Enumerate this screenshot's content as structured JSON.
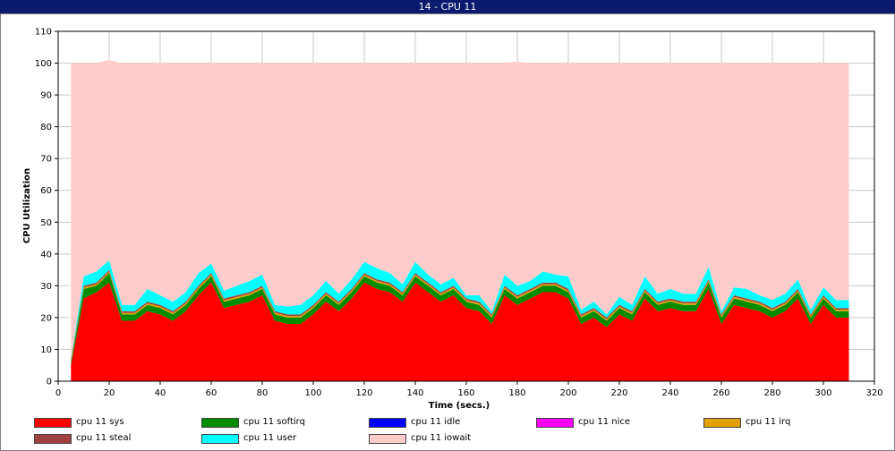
{
  "window": {
    "title": "14 - CPU 11"
  },
  "chart_data": {
    "type": "area",
    "stacked": true,
    "xlabel": "Time (secs.)",
    "ylabel": "CPU Utilization",
    "xlim": [
      0,
      320
    ],
    "ylim": [
      0,
      110
    ],
    "xticks": [
      0,
      20,
      40,
      60,
      80,
      100,
      120,
      140,
      160,
      180,
      200,
      220,
      240,
      260,
      280,
      300,
      320
    ],
    "yticks": [
      0,
      10,
      20,
      30,
      40,
      50,
      60,
      70,
      80,
      90,
      100,
      110
    ],
    "grid": true,
    "legend_position": "bottom",
    "x": [
      5,
      10,
      15,
      20,
      25,
      30,
      35,
      40,
      45,
      50,
      55,
      60,
      65,
      70,
      75,
      80,
      85,
      90,
      95,
      100,
      105,
      110,
      115,
      120,
      125,
      130,
      135,
      140,
      145,
      150,
      155,
      160,
      165,
      170,
      175,
      180,
      185,
      190,
      195,
      200,
      205,
      210,
      215,
      220,
      225,
      230,
      235,
      240,
      245,
      250,
      255,
      260,
      265,
      270,
      275,
      280,
      285,
      290,
      295,
      300,
      305,
      310
    ],
    "series": [
      {
        "name": "cpu 11 sys",
        "color": "#ff0000",
        "values": [
          5,
          26,
          28,
          31,
          19,
          19,
          22,
          21,
          19,
          22,
          27,
          31,
          23,
          24,
          25,
          27,
          19,
          18,
          18,
          21,
          25,
          22,
          26,
          31,
          29,
          28,
          25,
          31,
          28,
          25,
          27,
          23,
          22,
          18,
          27,
          24,
          26,
          28,
          28,
          26,
          18,
          20,
          17,
          21,
          19,
          26,
          22,
          23,
          22,
          22,
          29,
          18,
          24,
          23,
          22,
          20,
          22,
          26,
          18,
          24,
          20,
          20
        ]
      },
      {
        "name": "cpu 11 softirq",
        "color": "#008c00",
        "values": [
          1,
          3,
          2,
          3,
          2,
          2,
          2,
          2,
          2,
          2,
          2,
          2,
          2,
          2,
          2,
          2,
          2,
          2,
          2,
          2,
          2,
          2,
          2,
          2,
          2,
          2,
          2,
          2,
          2,
          2,
          2,
          2,
          2,
          2,
          2,
          2,
          2,
          2,
          2,
          2,
          2,
          2,
          2,
          2,
          2,
          2,
          2,
          2,
          2,
          2,
          2,
          2,
          2,
          2,
          2,
          2,
          2,
          2,
          2,
          2,
          2,
          2
        ]
      },
      {
        "name": "cpu 11 idle",
        "color": "#0000ff",
        "values": [
          0,
          0,
          0,
          0,
          0,
          0,
          0,
          0,
          0,
          0,
          0,
          0,
          0,
          0,
          0,
          0,
          0,
          0,
          0,
          0,
          0,
          0,
          0,
          0,
          0,
          0,
          0,
          0,
          0,
          0,
          0,
          0,
          0,
          0,
          0,
          0,
          0,
          0,
          0,
          0,
          0,
          0,
          0,
          0,
          0,
          0,
          0,
          0,
          0,
          0,
          0,
          0,
          0,
          0,
          0,
          0,
          0,
          0,
          0,
          0,
          0,
          0
        ]
      },
      {
        "name": "cpu 11 nice",
        "color": "#ff00ff",
        "values": [
          0,
          0,
          0,
          0,
          0,
          0,
          0,
          0,
          0,
          0,
          0,
          0,
          0,
          0,
          0,
          0,
          0,
          0,
          0,
          0,
          0,
          0,
          0,
          0,
          0,
          0,
          0,
          0,
          0,
          0,
          0,
          0,
          0,
          0,
          0,
          0,
          0,
          0,
          0,
          0,
          0,
          0,
          0,
          0,
          0,
          0,
          0,
          0,
          0,
          0,
          0,
          0,
          0,
          0,
          0,
          0,
          0,
          0,
          0,
          0,
          0,
          0
        ]
      },
      {
        "name": "cpu 11 irq",
        "color": "#e0a000",
        "values": [
          0.4,
          0.5,
          0.5,
          0.5,
          0.5,
          0.5,
          0.5,
          0.5,
          0.5,
          0.5,
          0.5,
          0.5,
          0.5,
          0.5,
          0.5,
          0.5,
          0.5,
          0.5,
          0.5,
          0.5,
          0.5,
          0.5,
          0.5,
          0.5,
          0.5,
          0.5,
          0.5,
          0.5,
          0.5,
          0.5,
          0.5,
          0.5,
          0.5,
          0.5,
          0.5,
          0.5,
          0.5,
          0.5,
          0.5,
          0.5,
          0.5,
          0.5,
          0.5,
          0.5,
          0.5,
          0.5,
          0.5,
          0.5,
          0.5,
          0.5,
          0.5,
          0.5,
          0.5,
          0.5,
          0.5,
          0.5,
          0.5,
          0.5,
          0.5,
          0.5,
          0.5,
          0.5
        ]
      },
      {
        "name": "cpu 11 steal",
        "color": "#a04040",
        "values": [
          0.4,
          0.5,
          0.5,
          0.5,
          0.5,
          0.5,
          0.5,
          0.5,
          0.5,
          0.5,
          0.5,
          0.5,
          0.5,
          0.5,
          0.5,
          0.5,
          0.5,
          0.5,
          0.5,
          0.5,
          0.5,
          0.5,
          0.5,
          0.5,
          0.5,
          0.5,
          0.5,
          0.5,
          0.5,
          0.5,
          0.5,
          0.5,
          0.5,
          0.5,
          0.5,
          0.5,
          0.5,
          0.5,
          0.5,
          0.5,
          0.5,
          0.5,
          0.5,
          0.5,
          0.5,
          0.5,
          0.5,
          0.5,
          0.5,
          0.5,
          0.5,
          0.5,
          0.5,
          0.5,
          0.5,
          0.5,
          0.5,
          0.5,
          0.5,
          0.5,
          0.5,
          0.5
        ]
      },
      {
        "name": "cpu 11 user",
        "color": "#00ffff",
        "values": [
          0.2,
          3,
          3.5,
          3,
          2,
          2,
          4,
          3,
          3,
          3,
          4,
          3,
          2.5,
          3,
          3.5,
          3.5,
          2,
          2.5,
          3,
          3,
          3.5,
          2.5,
          3,
          3.5,
          3.5,
          3,
          2.5,
          3.5,
          2.5,
          2.5,
          2.5,
          1,
          2,
          1,
          3.5,
          3,
          2.5,
          3.5,
          2.5,
          4,
          1.5,
          2,
          1,
          2.5,
          2,
          4,
          2.5,
          3,
          2.5,
          2.5,
          4,
          1,
          2.5,
          3,
          2,
          2.5,
          2.5,
          3,
          1.5,
          2.5,
          2.5,
          2.5
        ]
      },
      {
        "name": "cpu 11 iowait",
        "color": "#ffcccc",
        "values": [
          93,
          67,
          65.5,
          63,
          76,
          76,
          71,
          73,
          75,
          72,
          66,
          63,
          71.5,
          70,
          68.5,
          66.5,
          76,
          76.5,
          76,
          73,
          68.5,
          72.5,
          68,
          62.5,
          64.5,
          66,
          69.5,
          62.5,
          66.5,
          69.5,
          67.5,
          73,
          73,
          78,
          66.5,
          70.5,
          68.5,
          65.5,
          66.5,
          67,
          77.5,
          75,
          79,
          73.5,
          76,
          67,
          72.5,
          71,
          72.5,
          72.5,
          64,
          78,
          70.5,
          71,
          73,
          74.5,
          72.5,
          68,
          77.5,
          70.5,
          74.5,
          74.5
        ]
      }
    ]
  }
}
